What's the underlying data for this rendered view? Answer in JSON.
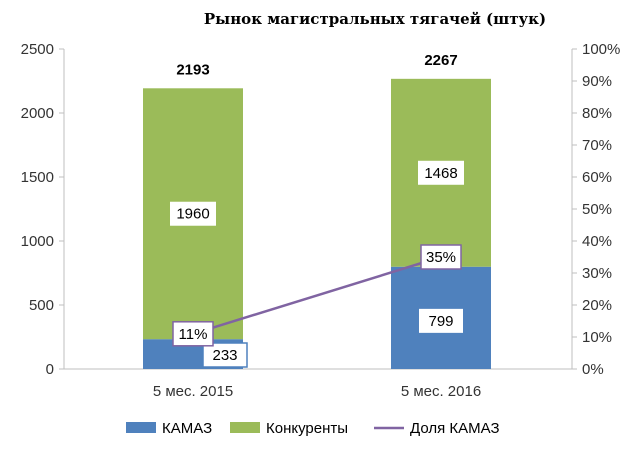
{
  "chart_data": {
    "type": "bar",
    "title": "Рынок магистральных тягачей (штук)",
    "categories": [
      "5 мес. 2015",
      "5 мес. 2016"
    ],
    "series": [
      {
        "name": "КАМАЗ",
        "kind": "stacked-bar",
        "axis": "left",
        "color": "#4f81bd",
        "values": [
          233,
          799
        ]
      },
      {
        "name": "Конкуренты",
        "kind": "stacked-bar",
        "axis": "left",
        "color": "#9bbb59",
        "values": [
          1960,
          1468
        ]
      },
      {
        "name": "Доля КАМАЗ",
        "kind": "line",
        "axis": "right",
        "color": "#8064a2",
        "values": [
          11,
          35
        ],
        "labels": [
          "11%",
          "35%"
        ]
      }
    ],
    "totals": [
      "2193",
      "2267"
    ],
    "bar_labels": {
      "kamaz": [
        "233",
        "799"
      ],
      "competitors": [
        "1960",
        "1468"
      ]
    },
    "yleft": {
      "ylim": [
        0,
        2500
      ],
      "ticks": [
        "0",
        "500",
        "1000",
        "1500",
        "2000",
        "2500"
      ]
    },
    "yright": {
      "ylim": [
        0,
        100
      ],
      "ticks": [
        "0%",
        "10%",
        "20%",
        "30%",
        "40%",
        "50%",
        "60%",
        "70%",
        "80%",
        "90%",
        "100%"
      ]
    },
    "legend": {
      "placement": "bottom",
      "items": [
        "КАМАЗ",
        "Конкуренты",
        "Доля КАМАЗ"
      ]
    },
    "grid": false
  }
}
